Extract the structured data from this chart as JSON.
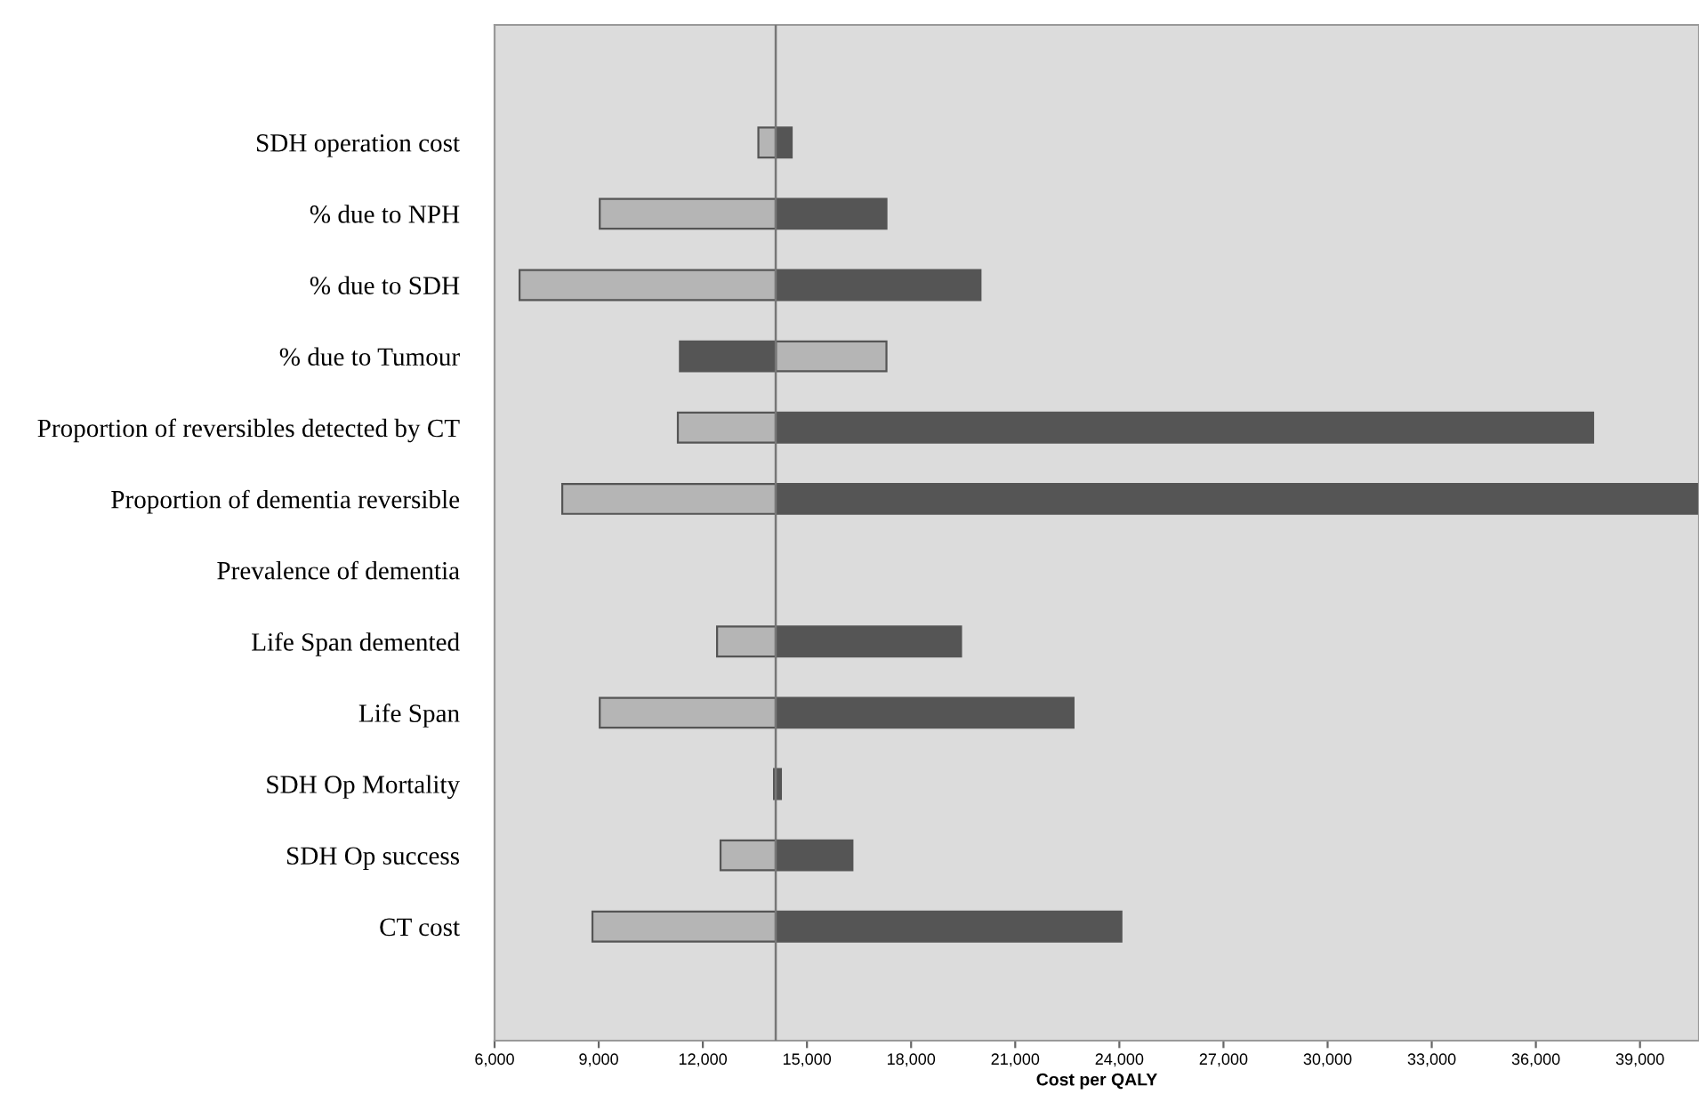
{
  "chart_data": {
    "type": "bar",
    "orientation": "horizontal",
    "xlabel": "Cost per QALY",
    "categories": [
      "SDH operation cost",
      "% due to NPH",
      "% due to SDH",
      "% due to Tumour",
      "Proportion of reversibles detected by CT",
      "Proportion of dementia reversible",
      "Prevalence of dementia",
      "Life Span demented",
      "Life Span",
      "SDH Op Mortality",
      "SDH Op success",
      "CT cost"
    ],
    "series": [
      {
        "color": "#b5b5b5",
        "base": [
          13600,
          9030,
          6720,
          14100,
          11280,
          7950,
          null,
          12410,
          9030,
          null,
          12510,
          8820
        ],
        "values": [
          500,
          5070,
          7380,
          3190,
          2820,
          6150,
          null,
          1690,
          5070,
          null,
          1590,
          5280
        ]
      },
      {
        "color": "#555555",
        "base": [
          14100,
          14100,
          14100,
          11340,
          14100,
          14100,
          null,
          14100,
          14100,
          14050,
          14100,
          14100
        ],
        "values": [
          460,
          3190,
          5900,
          2760,
          23550,
          26600,
          null,
          5340,
          8580,
          200,
          2210,
          9960
        ]
      }
    ],
    "xlim": [
      6000,
      40700
    ],
    "xticks": [
      {
        "value": 6000,
        "label": "6,000"
      },
      {
        "value": 9000,
        "label": "9,000"
      },
      {
        "value": 12000,
        "label": "12,000"
      },
      {
        "value": 15000,
        "label": "15,000"
      },
      {
        "value": 18000,
        "label": "18,000"
      },
      {
        "value": 21000,
        "label": "21,000"
      },
      {
        "value": 24000,
        "label": "24,000"
      },
      {
        "value": 27000,
        "label": "27,000"
      },
      {
        "value": 30000,
        "label": "30,000"
      },
      {
        "value": 33000,
        "label": "33,000"
      },
      {
        "value": 36000,
        "label": "36,000"
      },
      {
        "value": 39000,
        "label": "39,000"
      }
    ],
    "ref_lines": [
      {
        "axis": "x",
        "value": 14100,
        "color": "#777777"
      }
    ],
    "grid": false,
    "legend": false
  }
}
